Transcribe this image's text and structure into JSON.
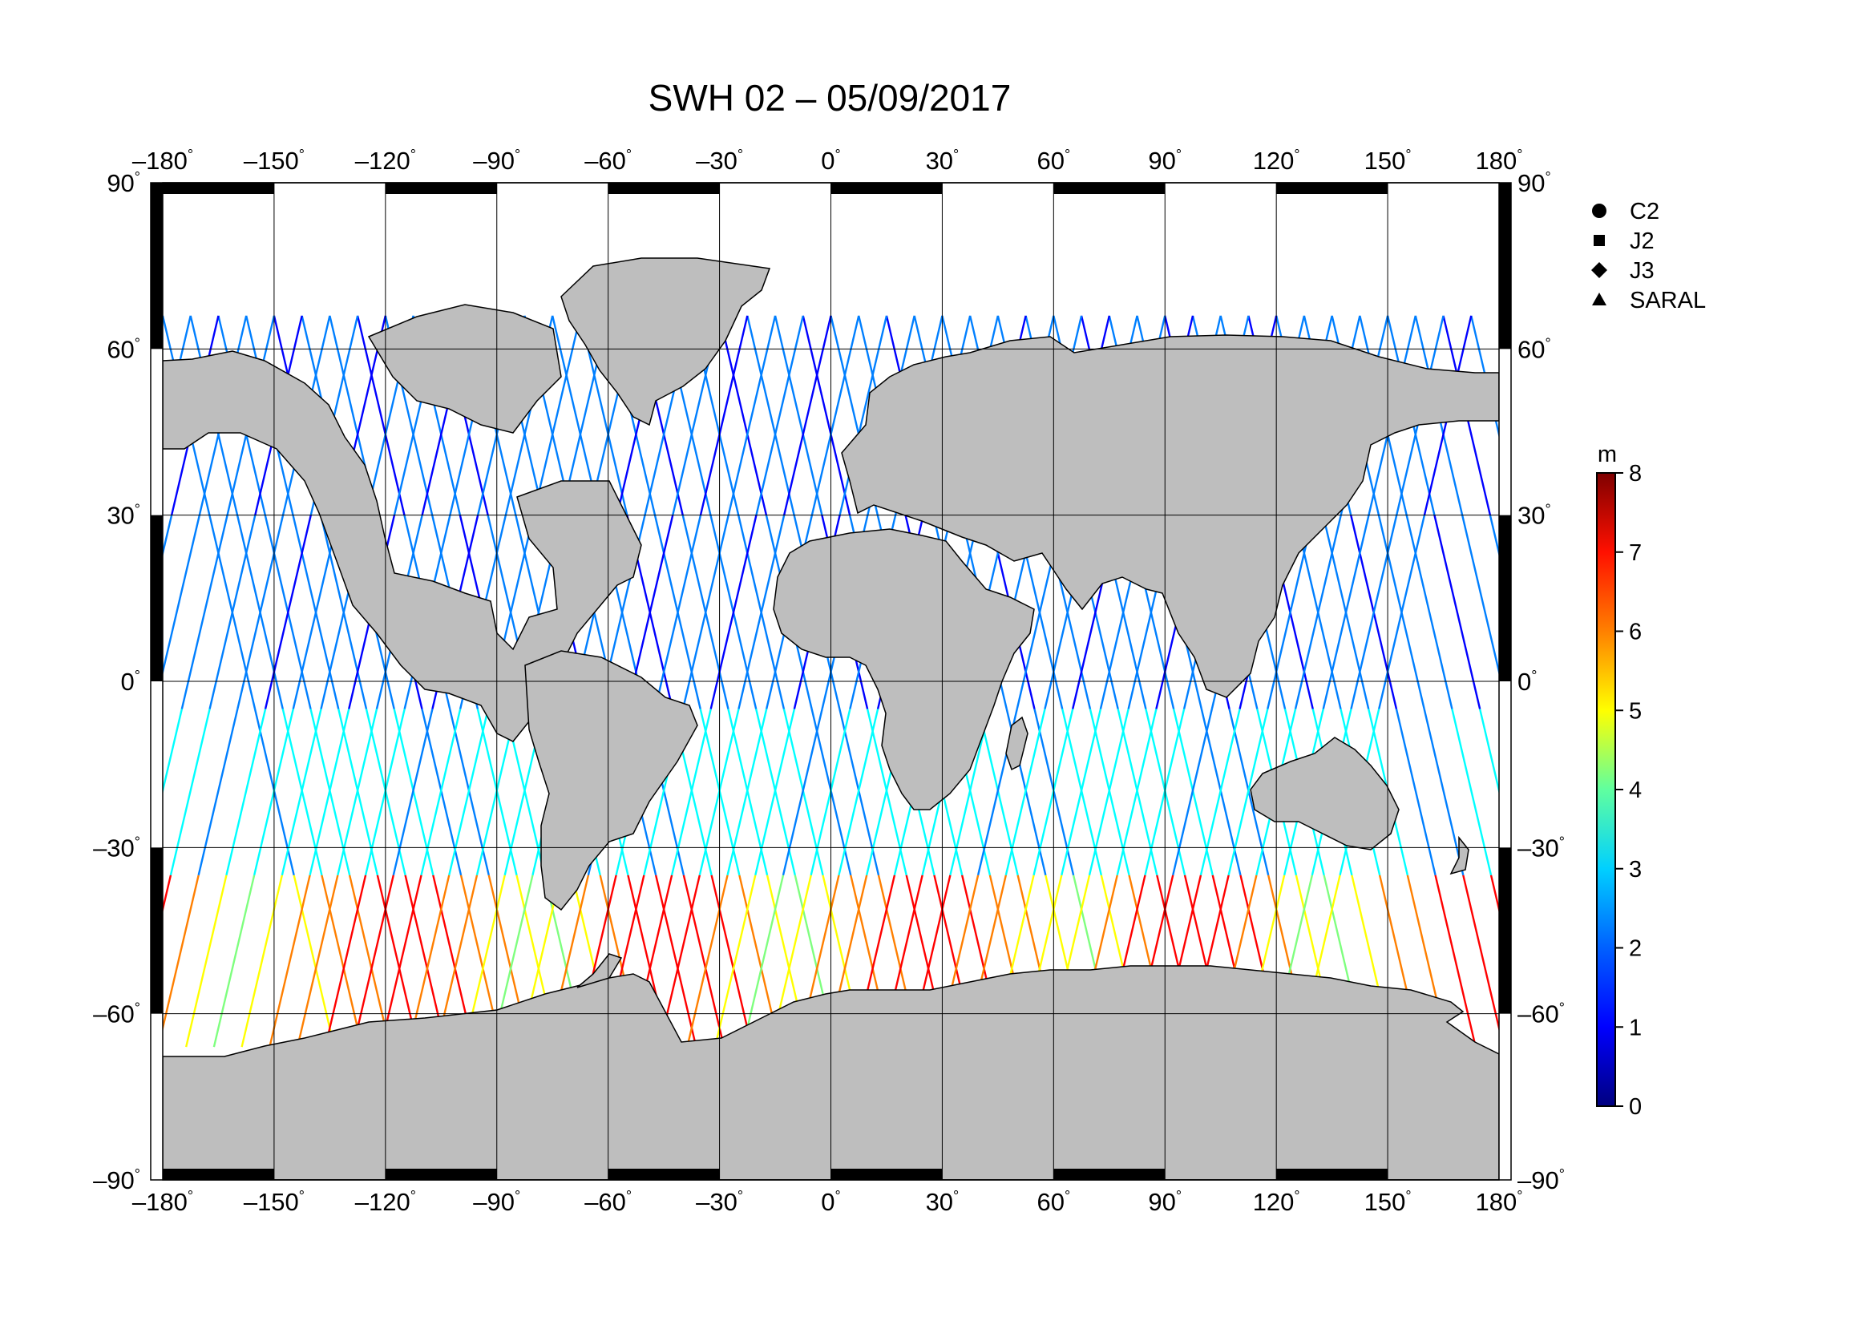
{
  "title": "SWH 02 – 05/09/2017",
  "lon_ticks": [
    "–180",
    "–150",
    "–120",
    "–90",
    "–60",
    "–30",
    "0",
    "30",
    "60",
    "90",
    "120",
    "150",
    "180"
  ],
  "lat_ticks": [
    "90",
    "60",
    "30",
    "0",
    "–30",
    "–60",
    "–90"
  ],
  "degree_mark": "°",
  "legend": [
    {
      "label": "C2",
      "marker": "circle"
    },
    {
      "label": "J2",
      "marker": "square"
    },
    {
      "label": "J3",
      "marker": "diamond"
    },
    {
      "label": "SARAL",
      "marker": "triangle"
    }
  ],
  "colorbar": {
    "unit": "m",
    "min": 0,
    "max": 8,
    "ticks": [
      "0",
      "1",
      "2",
      "3",
      "4",
      "5",
      "6",
      "7",
      "8"
    ],
    "colors": [
      "#00007f",
      "#0000ff",
      "#007fff",
      "#00ffff",
      "#7fff7f",
      "#ffff00",
      "#ff7f00",
      "#ff0000",
      "#7f0000"
    ]
  },
  "colors": {
    "land": "#bebebe",
    "ocean": "#ffffff",
    "frame": "#000000"
  }
}
